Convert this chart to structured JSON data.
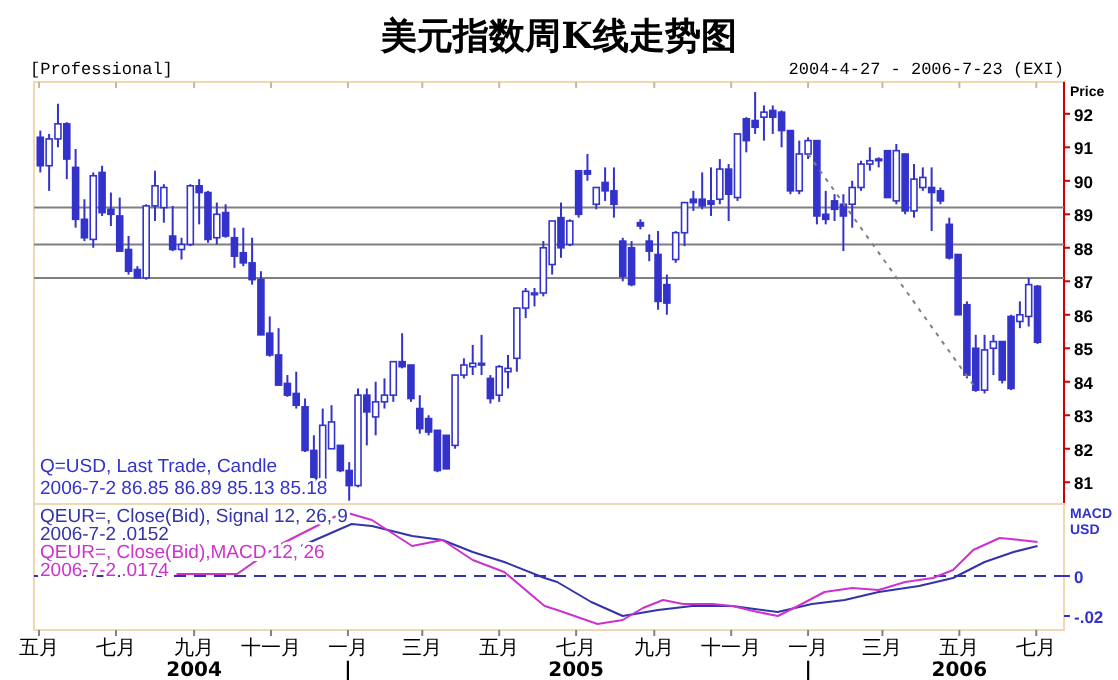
{
  "chart_data": [
    {
      "type": "candlestick",
      "title": "美元指数周K线走势图",
      "ylabel": "Price",
      "annotations": [
        "[Professional]",
        "2004-4-27 - 2006-7-23 (EXI)",
        "Q=USD, Last Trade, Candle",
        "2006-7-2 86.85 86.89 85.13 85.18"
      ],
      "color": "#3333cc",
      "x": [
        "2004-05-02",
        "2004-05-09",
        "2004-05-16",
        "2004-05-23",
        "2004-05-30",
        "2004-06-06",
        "2004-06-13",
        "2004-06-20",
        "2004-06-27",
        "2004-07-04",
        "2004-07-11",
        "2004-07-18",
        "2004-07-25",
        "2004-08-01",
        "2004-08-08",
        "2004-08-15",
        "2004-08-22",
        "2004-08-29",
        "2004-09-05",
        "2004-09-12",
        "2004-09-19",
        "2004-09-26",
        "2004-10-03",
        "2004-10-10",
        "2004-10-17",
        "2004-10-24",
        "2004-10-31",
        "2004-11-07",
        "2004-11-14",
        "2004-11-21",
        "2004-11-28",
        "2004-12-05",
        "2004-12-12",
        "2004-12-19",
        "2004-12-26",
        "2005-01-02",
        "2005-01-09",
        "2005-01-16",
        "2005-01-23",
        "2005-01-30",
        "2005-02-06",
        "2005-02-13",
        "2005-02-20",
        "2005-02-27",
        "2005-03-06",
        "2005-03-13",
        "2005-03-20",
        "2005-03-27",
        "2005-04-03",
        "2005-04-10",
        "2005-04-17",
        "2005-04-24",
        "2005-05-01",
        "2005-05-08",
        "2005-05-15",
        "2005-05-22",
        "2005-05-29",
        "2005-06-05",
        "2005-06-12",
        "2005-06-19",
        "2005-06-26",
        "2005-07-03",
        "2005-07-10",
        "2005-07-17",
        "2005-07-24",
        "2005-07-31",
        "2005-08-07",
        "2005-08-14",
        "2005-08-21",
        "2005-08-28",
        "2005-09-04",
        "2005-09-11",
        "2005-09-18",
        "2005-09-25",
        "2005-10-02",
        "2005-10-09",
        "2005-10-16",
        "2005-10-23",
        "2005-10-30",
        "2005-11-06",
        "2005-11-13",
        "2005-11-20",
        "2005-11-27",
        "2005-12-04",
        "2005-12-11",
        "2005-12-18",
        "2005-12-25",
        "2006-01-01",
        "2006-01-08",
        "2006-01-15",
        "2006-01-22",
        "2006-01-29",
        "2006-02-05",
        "2006-02-12",
        "2006-02-19",
        "2006-02-26",
        "2006-03-05",
        "2006-03-12",
        "2006-03-19",
        "2006-03-26",
        "2006-04-02",
        "2006-04-09",
        "2006-04-16",
        "2006-04-23",
        "2006-04-30",
        "2006-05-07",
        "2006-05-14",
        "2006-05-21",
        "2006-05-28",
        "2006-06-04",
        "2006-06-11",
        "2006-06-18",
        "2006-06-25",
        "2006-07-02"
      ],
      "ohlc": [
        [
          91.3,
          91.5,
          90.25,
          90.45
        ],
        [
          90.45,
          91.4,
          89.7,
          91.25
        ],
        [
          91.25,
          92.3,
          91.0,
          91.7
        ],
        [
          91.7,
          91.75,
          90.05,
          90.65
        ],
        [
          90.4,
          90.95,
          88.6,
          88.85
        ],
        [
          88.85,
          89.45,
          88.2,
          88.3
        ],
        [
          88.25,
          90.25,
          88.0,
          90.15
        ],
        [
          90.25,
          90.45,
          88.95,
          89.05
        ],
        [
          89.15,
          89.65,
          88.65,
          89.0
        ],
        [
          88.95,
          89.5,
          87.9,
          87.9
        ],
        [
          87.95,
          88.35,
          87.2,
          87.3
        ],
        [
          87.35,
          87.45,
          87.1,
          87.1
        ],
        [
          87.1,
          89.3,
          87.05,
          89.25
        ],
        [
          89.25,
          90.3,
          88.8,
          89.85
        ],
        [
          89.2,
          89.9,
          88.75,
          89.8
        ],
        [
          88.35,
          89.25,
          87.9,
          87.95
        ],
        [
          87.95,
          88.3,
          87.65,
          88.1
        ],
        [
          88.1,
          89.9,
          88.05,
          89.85
        ],
        [
          89.85,
          90.05,
          88.7,
          89.65
        ],
        [
          89.65,
          89.7,
          88.15,
          88.25
        ],
        [
          88.3,
          89.35,
          88.1,
          89.0
        ],
        [
          89.05,
          89.3,
          88.3,
          88.35
        ],
        [
          88.3,
          88.6,
          87.4,
          87.75
        ],
        [
          87.85,
          88.6,
          87.45,
          87.55
        ],
        [
          87.55,
          88.3,
          86.9,
          87.05
        ],
        [
          87.05,
          87.3,
          85.4,
          85.4
        ],
        [
          85.45,
          85.95,
          84.75,
          84.8
        ],
        [
          84.8,
          85.6,
          83.9,
          83.9
        ],
        [
          83.95,
          84.2,
          83.55,
          83.6
        ],
        [
          83.65,
          84.3,
          83.2,
          83.3
        ],
        [
          83.25,
          83.5,
          81.9,
          81.95
        ],
        [
          81.95,
          82.4,
          80.95,
          80.95
        ],
        [
          80.95,
          83.2,
          80.95,
          82.7
        ],
        [
          82.0,
          83.3,
          82.0,
          82.8
        ],
        [
          82.1,
          82.1,
          81.3,
          81.35
        ],
        [
          81.35,
          81.6,
          80.45,
          80.9
        ],
        [
          80.9,
          83.8,
          80.85,
          83.6
        ],
        [
          83.6,
          83.8,
          82.1,
          83.1
        ],
        [
          82.95,
          84.0,
          82.4,
          83.4
        ],
        [
          83.4,
          84.1,
          83.2,
          83.6
        ],
        [
          83.6,
          84.6,
          83.4,
          84.6
        ],
        [
          84.6,
          85.45,
          84.4,
          84.45
        ],
        [
          84.5,
          84.5,
          83.4,
          83.5
        ],
        [
          83.2,
          83.6,
          82.45,
          82.6
        ],
        [
          82.9,
          83.0,
          82.4,
          82.5
        ],
        [
          82.55,
          82.55,
          81.3,
          81.35
        ],
        [
          82.4,
          82.4,
          81.4,
          81.4
        ],
        [
          82.1,
          84.2,
          82.0,
          84.2
        ],
        [
          84.2,
          84.7,
          84.1,
          84.5
        ],
        [
          84.45,
          85.1,
          84.2,
          84.55
        ],
        [
          84.55,
          85.4,
          84.2,
          84.5
        ],
        [
          84.1,
          84.2,
          83.35,
          83.5
        ],
        [
          83.6,
          84.5,
          83.4,
          84.45
        ],
        [
          84.3,
          84.8,
          83.8,
          84.4
        ],
        [
          84.7,
          86.2,
          84.3,
          86.2
        ],
        [
          86.2,
          86.8,
          85.9,
          86.7
        ],
        [
          86.6,
          86.8,
          86.25,
          86.65
        ],
        [
          86.65,
          88.2,
          86.55,
          88.0
        ],
        [
          87.5,
          88.8,
          87.2,
          88.8
        ],
        [
          88.9,
          89.35,
          87.7,
          88.0
        ],
        [
          88.1,
          88.85,
          88.05,
          88.8
        ],
        [
          90.3,
          90.3,
          88.9,
          89.0
        ],
        [
          90.3,
          90.8,
          90.0,
          90.2
        ],
        [
          89.3,
          89.8,
          89.15,
          89.8
        ],
        [
          89.95,
          90.4,
          89.4,
          89.7
        ],
        [
          89.7,
          90.4,
          88.9,
          89.3
        ],
        [
          88.2,
          88.3,
          87.0,
          87.15
        ],
        [
          88.0,
          88.2,
          86.85,
          86.9
        ],
        [
          88.75,
          88.85,
          88.55,
          88.65
        ],
        [
          88.2,
          88.4,
          87.6,
          87.9
        ],
        [
          87.8,
          88.5,
          86.15,
          86.4
        ],
        [
          86.9,
          87.2,
          86.0,
          86.35
        ],
        [
          87.65,
          88.5,
          87.55,
          88.45
        ],
        [
          88.45,
          89.35,
          88.05,
          89.35
        ],
        [
          89.45,
          89.7,
          89.1,
          89.35
        ],
        [
          89.45,
          90.25,
          89.15,
          89.25
        ],
        [
          89.4,
          90.4,
          88.95,
          89.3
        ],
        [
          89.45,
          90.65,
          89.3,
          90.35
        ],
        [
          90.35,
          90.5,
          88.8,
          89.6
        ],
        [
          89.5,
          91.4,
          89.4,
          91.4
        ],
        [
          91.85,
          91.9,
          90.85,
          91.2
        ],
        [
          91.8,
          92.65,
          91.4,
          91.6
        ],
        [
          91.9,
          92.25,
          91.2,
          92.05
        ],
        [
          92.1,
          92.25,
          91.4,
          91.9
        ],
        [
          92.05,
          92.1,
          91.0,
          91.5
        ],
        [
          91.5,
          91.5,
          89.6,
          89.7
        ],
        [
          89.7,
          91.2,
          89.6,
          90.8
        ],
        [
          90.8,
          91.3,
          90.65,
          91.2
        ],
        [
          91.2,
          91.2,
          88.7,
          88.95
        ],
        [
          89.0,
          89.7,
          88.7,
          88.85
        ],
        [
          89.4,
          89.6,
          88.8,
          89.15
        ],
        [
          89.3,
          89.6,
          87.9,
          88.95
        ],
        [
          89.3,
          90.0,
          88.6,
          89.8
        ],
        [
          89.8,
          90.6,
          89.7,
          90.5
        ],
        [
          90.5,
          91.0,
          90.3,
          90.6
        ],
        [
          90.65,
          90.7,
          90.4,
          90.6
        ],
        [
          90.9,
          90.9,
          89.5,
          89.5
        ],
        [
          89.4,
          91.1,
          89.3,
          90.9
        ],
        [
          90.8,
          90.8,
          89.0,
          89.1
        ],
        [
          89.1,
          90.5,
          88.9,
          90.05
        ],
        [
          89.8,
          90.4,
          89.7,
          90.1
        ],
        [
          89.8,
          90.4,
          88.5,
          89.65
        ],
        [
          89.7,
          89.8,
          89.3,
          89.4
        ],
        [
          88.7,
          88.9,
          87.65,
          87.7
        ],
        [
          87.8,
          87.8,
          86.0,
          86.0
        ],
        [
          86.3,
          86.4,
          84.1,
          84.2
        ],
        [
          85.0,
          85.4,
          83.7,
          83.75
        ],
        [
          83.75,
          85.4,
          83.65,
          84.95
        ],
        [
          85.0,
          85.4,
          84.2,
          85.2
        ],
        [
          85.2,
          85.2,
          83.95,
          84.05
        ],
        [
          85.95,
          86.0,
          83.75,
          83.8
        ],
        [
          85.8,
          86.4,
          85.6,
          86.0
        ],
        [
          85.95,
          87.1,
          85.65,
          86.9
        ],
        [
          86.85,
          86.89,
          85.13,
          85.18
        ]
      ],
      "series": [
        {
          "type": "line",
          "x": [
            "2006-01-01",
            "2006-05-14"
          ],
          "values": [
            90.8,
            83.8
          ],
          "color": "#808080",
          "line_style": "dotted"
        }
      ],
      "ref_lines": [
        {
          "axis": "y",
          "value": 89.2,
          "color": "#808080"
        },
        {
          "axis": "y",
          "value": 88.1,
          "color": "#808080"
        },
        {
          "axis": "y",
          "value": 87.1,
          "color": "#808080"
        }
      ],
      "xlim": [
        "2004-04-27",
        "2006-07-23"
      ],
      "ylim": [
        80.35,
        92.95
      ],
      "yticks": [
        81,
        82,
        83,
        84,
        85,
        86,
        87,
        88,
        89,
        90,
        91,
        92
      ],
      "xticks": [
        {
          "value": "2004-05-01",
          "label": null
        },
        {
          "value": "2004-07-01",
          "label": null
        },
        {
          "value": "2004-09-01",
          "label": null
        },
        {
          "value": "2004-11-01",
          "label": null
        },
        {
          "value": "2005-01-01",
          "label": null
        },
        {
          "value": "2005-03-01",
          "label": null
        },
        {
          "value": "2005-05-01",
          "label": null
        },
        {
          "value": "2005-07-01",
          "label": null
        },
        {
          "value": "2005-09-01",
          "label": null
        },
        {
          "value": "2005-11-01",
          "label": null
        },
        {
          "value": "2006-01-01",
          "label": null
        },
        {
          "value": "2006-03-01",
          "label": null
        },
        {
          "value": "2006-05-01",
          "label": null
        },
        {
          "value": "2006-07-01",
          "label": null
        }
      ],
      "tick_labels": "y"
    },
    {
      "type": "line",
      "ylabel": "MACD\nUSD",
      "annotations": [
        "2006-7-2 .0152",
        "2006-7-2 .0174"
      ],
      "series": [
        {
          "name": "QEUR=, Close(Bid), Signal 12, 26, 9",
          "color": "#3333aa",
          "x": [
            "2004-11-25",
            "2005-01-04",
            "2005-01-20",
            "2005-02-21",
            "2005-03-17",
            "2005-04-10",
            "2005-05-05",
            "2005-06-06",
            "2005-06-16",
            "2005-07-13",
            "2005-08-07",
            "2005-09-04",
            "2005-10-01",
            "2005-11-02",
            "2005-12-08",
            "2006-01-04",
            "2006-01-30",
            "2006-02-26",
            "2006-03-30",
            "2006-04-26",
            "2006-05-21",
            "2006-06-13",
            "2006-07-02"
          ],
          "values": [
            0.015,
            0.026,
            0.025,
            0.02,
            0.018,
            0.012,
            0.007,
            -0.001,
            -0.003,
            -0.013,
            -0.02,
            -0.017,
            -0.015,
            -0.015,
            -0.018,
            -0.014,
            -0.012,
            -0.008,
            -0.005,
            -0.001,
            0.007,
            0.012,
            0.015
          ]
        },
        {
          "name": "QEUR=, Close(Bid),MACD 12, 26",
          "color": "#cc33cc",
          "x": [
            "2004-08-18",
            "2004-10-05",
            "2004-11-06",
            "2004-12-29",
            "2005-01-20",
            "2005-02-21",
            "2005-03-17",
            "2005-04-10",
            "2005-05-05",
            "2005-06-06",
            "2005-06-16",
            "2005-07-18",
            "2005-08-07",
            "2005-08-23",
            "2005-09-08",
            "2005-09-24",
            "2005-10-17",
            "2005-11-02",
            "2005-11-22",
            "2005-12-08",
            "2005-12-24",
            "2006-01-14",
            "2006-02-05",
            "2006-02-26",
            "2006-03-19",
            "2006-04-10",
            "2006-04-26",
            "2006-05-12",
            "2006-06-02",
            "2006-06-18",
            "2006-07-02"
          ],
          "values": [
            0.001,
            0.001,
            0.015,
            0.032,
            0.028,
            0.015,
            0.018,
            0.008,
            0.002,
            -0.015,
            -0.017,
            -0.024,
            -0.022,
            -0.016,
            -0.012,
            -0.014,
            -0.014,
            -0.015,
            -0.018,
            -0.02,
            -0.015,
            -0.008,
            -0.006,
            -0.007,
            -0.003,
            -0.001,
            0.003,
            0.013,
            0.019,
            0.018,
            0.017
          ]
        }
      ],
      "ref_lines": [
        {
          "axis": "y",
          "value": 0,
          "color": "#3333aa",
          "line_style": "dashed"
        }
      ],
      "xlim": [
        "2004-04-27",
        "2006-07-23"
      ],
      "ylim": [
        -0.027,
        0.036
      ],
      "yticks": [
        {
          "value": 0,
          "label": "0"
        },
        {
          "value": -0.02,
          "label": "-.02"
        }
      ],
      "xticks": [
        {
          "value": "2004-05-01",
          "label": "五月"
        },
        {
          "value": "2004-07-01",
          "label": "七月"
        },
        {
          "value": "2004-09-01",
          "label": "九月\n2004"
        },
        {
          "value": "2004-11-01",
          "label": "十一月"
        },
        {
          "value": "2005-01-01",
          "label": "一月\n|"
        },
        {
          "value": "2005-03-01",
          "label": "三月"
        },
        {
          "value": "2005-05-01",
          "label": "五月"
        },
        {
          "value": "2005-07-01",
          "label": "七月\n2005"
        },
        {
          "value": "2005-09-01",
          "label": "九月"
        },
        {
          "value": "2005-11-01",
          "label": "十一月"
        },
        {
          "value": "2006-01-01",
          "label": "一月\n|"
        },
        {
          "value": "2006-03-01",
          "label": "三月"
        },
        {
          "value": "2006-05-01",
          "label": "五月\n2006"
        },
        {
          "value": "2006-07-01",
          "label": "七月"
        }
      ]
    }
  ]
}
